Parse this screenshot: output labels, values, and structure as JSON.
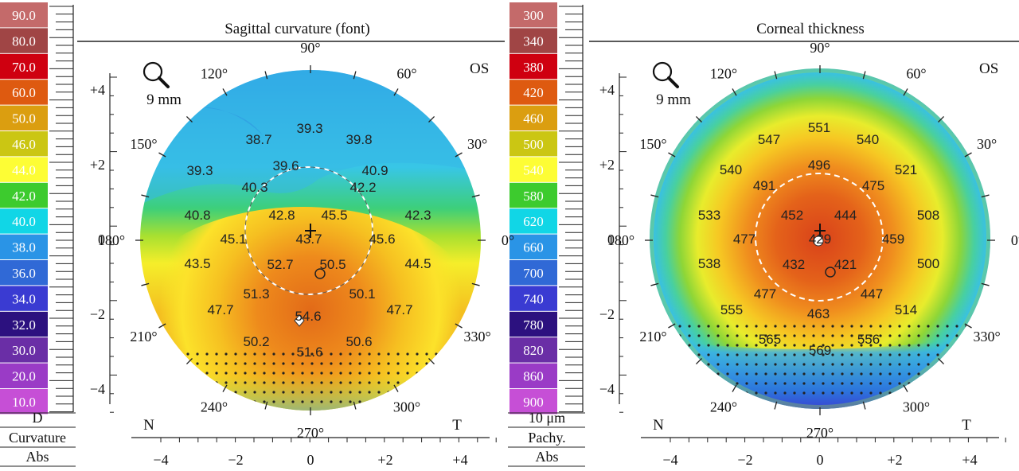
{
  "left": {
    "title": "Sagittal curvature (font)",
    "eye": "OS",
    "zoom": "9 mm",
    "zoom_icon": "magnifier-icon",
    "scale_values": [
      "90.0",
      "80.0",
      "70.0",
      "60.0",
      "50.0",
      "46.0",
      "44.0",
      "42.0",
      "40.0",
      "38.0",
      "36.0",
      "34.0",
      "32.0",
      "30.0",
      "20.0",
      "10.0"
    ],
    "scale_colors": [
      "#c46a6a",
      "#a04545",
      "#cf0010",
      "#de5a10",
      "#db9e10",
      "#cbc613",
      "#fdfd35",
      "#3dcb2e",
      "#11d6e6",
      "#2a94e6",
      "#3069d6",
      "#3a3bd2",
      "#2c117f",
      "#6a2ea6",
      "#9a3bc6",
      "#c64fd6"
    ],
    "footer": [
      "D",
      "Curvature",
      "Abs"
    ],
    "angles": [
      "90°",
      "60°",
      "30°",
      "0°",
      "330°",
      "300°",
      "270°",
      "240°",
      "210°",
      "180°",
      "150°",
      "120°"
    ],
    "y_ticks": [
      "+4",
      "+2",
      "0",
      "−2",
      "−4"
    ],
    "x_ticks": [
      "−4",
      "−2",
      "0",
      "+2",
      "+4"
    ],
    "nasal": "N",
    "temporal": "T",
    "values": [
      "39.3",
      "38.7",
      "39.8",
      "39.3",
      "39.6",
      "40.9",
      "40.3",
      "42.2",
      "40.8",
      "42.8",
      "45.5",
      "42.3",
      "45.1",
      "43.7",
      "45.6",
      "43.5",
      "52.7",
      "50.5",
      "44.5",
      "51.3",
      "50.1",
      "47.7",
      "54.6",
      "47.7",
      "50.2",
      "50.6",
      "51.6"
    ]
  },
  "right": {
    "title": "Corneal thickness",
    "eye": "OS",
    "zoom": "9 mm",
    "zoom_icon": "magnifier-icon",
    "scale_values": [
      "300",
      "340",
      "380",
      "420",
      "460",
      "500",
      "540",
      "580",
      "620",
      "660",
      "700",
      "740",
      "780",
      "820",
      "860",
      "900"
    ],
    "scale_colors": [
      "#c46a6a",
      "#a04545",
      "#cf0010",
      "#de5a10",
      "#db9e10",
      "#cbc613",
      "#fdfd35",
      "#3dcb2e",
      "#11d6e6",
      "#2a94e6",
      "#3069d6",
      "#3a3bd2",
      "#2c117f",
      "#6a2ea6",
      "#9a3bc6",
      "#c64fd6"
    ],
    "footer": [
      "10 μm",
      "Pachy.",
      "Abs"
    ],
    "angles": [
      "90°",
      "60°",
      "30°",
      "0°",
      "330°",
      "300°",
      "270°",
      "240°",
      "210°",
      "180°",
      "150°",
      "120°"
    ],
    "y_ticks": [
      "+4",
      "+2",
      "0",
      "−2",
      "−4"
    ],
    "x_ticks": [
      "−4",
      "−2",
      "0",
      "+2",
      "+4"
    ],
    "nasal": "N",
    "temporal": "T",
    "values": [
      "551",
      "547",
      "540",
      "540",
      "496",
      "521",
      "491",
      "475",
      "533",
      "452",
      "444",
      "508",
      "477",
      "429",
      "459",
      "538",
      "432",
      "421",
      "500",
      "477",
      "447",
      "555",
      "463",
      "514",
      "565",
      "569",
      "556"
    ]
  }
}
